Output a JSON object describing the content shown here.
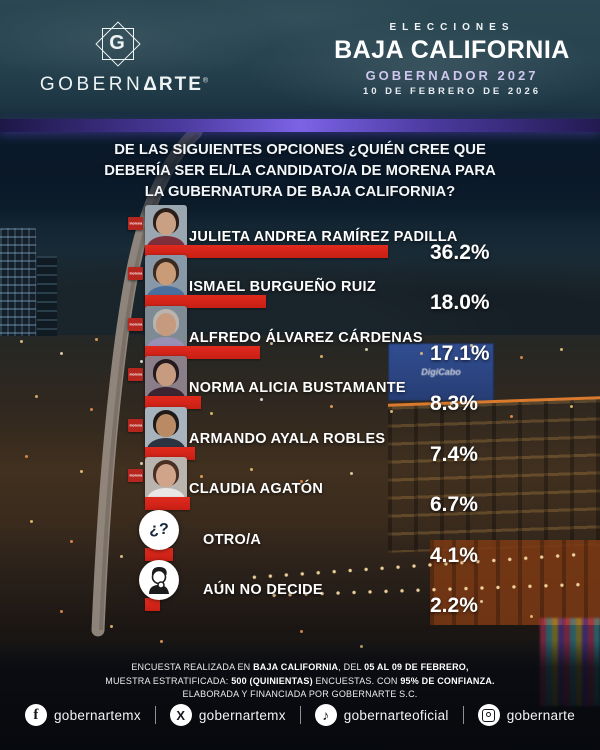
{
  "header": {
    "logo": {
      "monogram": "G",
      "name_regular": "GOBERN",
      "name_bold": "ΔRTE",
      "registered": "®"
    },
    "right": {
      "kicker": "ELECCIONES",
      "title": "BAJA CALIFORNIA",
      "subtitle": "GOBERNADOR 2027",
      "date": "10 DE FEBRERO DE 2026"
    }
  },
  "question": {
    "lines": [
      [
        {
          "text": "DE LAS SIGUIENTES OPCIONES ¿QUIÉN CREE QUE",
          "bold": false
        }
      ],
      [
        {
          "text": "DEBERÍA SER EL/LA CANDIDATO/A DE ",
          "bold": false
        },
        {
          "text": "MORENA PARA",
          "bold": true
        }
      ],
      [
        {
          "text": "LA GUBERNATURA DE BAJA CALIFORNIA?",
          "bold": true
        }
      ]
    ]
  },
  "chart_data": {
    "type": "bar",
    "orientation": "horizontal",
    "title": "De las siguientes opciones ¿quién cree que debería ser el/la candidato/a de MORENA para la gubernatura de Baja California?",
    "categories": [
      "JULIETA ANDREA RAMÍREZ PADILLA",
      "ISMAEL BURGUEÑO RUIZ",
      "ALFREDO ÁLVAREZ CÁRDENAS",
      "NORMA ALICIA BUSTAMANTE",
      "ARMANDO AYALA ROBLES",
      "CLAUDIA AGATÓN",
      "OTRO/A",
      "AÚN NO DECIDE"
    ],
    "values": [
      36.2,
      18.0,
      17.1,
      8.3,
      7.4,
      6.7,
      4.1,
      2.2
    ],
    "labels": [
      "36.2%",
      "18.0%",
      "17.1%",
      "8.3%",
      "7.4%",
      "6.7%",
      "4.1%",
      "2.2%"
    ],
    "bar_color": "#d2231c",
    "value_label_color": "#ffffff",
    "xlim": [
      0,
      40
    ],
    "grid": false,
    "legend": false
  },
  "results": {
    "badge_text": "morena",
    "other_glyph": "¿?"
  },
  "avatars": [
    {
      "bg": "#9aa7b0",
      "hair": "#2a1d1a",
      "skin": "#caa085",
      "shirt": "#7e2f3a"
    },
    {
      "bg": "#8898a6",
      "hair": "#3a2a20",
      "skin": "#c99b76",
      "shirt": "#4a6f9c"
    },
    {
      "bg": "#7f8b94",
      "hair": "#b9b5ae",
      "skin": "#c59a7e",
      "shirt": "#9a8fb5"
    },
    {
      "bg": "#8a7f88",
      "hair": "#241a1e",
      "skin": "#c79b80",
      "shirt": "#3a2530"
    },
    {
      "bg": "#a7b3bd",
      "hair": "#1f1a17",
      "skin": "#b98a64",
      "shirt": "#2c3442"
    },
    {
      "bg": "#b9b4ae",
      "hair": "#4a2f23",
      "skin": "#cfa488",
      "shirt": "#e9e7e6"
    }
  ],
  "background": {
    "billboard_text": "DigiCabo"
  },
  "footer": {
    "lines": [
      [
        {
          "text": "ENCUESTA REALIZADA EN ",
          "bold": false
        },
        {
          "text": "BAJA CALIFORNIA",
          "bold": true
        },
        {
          "text": ", DEL ",
          "bold": false
        },
        {
          "text": "05 AL 09 DE FEBRERO,",
          "bold": true
        }
      ],
      [
        {
          "text": "MUESTRA ESTRATIFICADA: ",
          "bold": false
        },
        {
          "text": "500 (QUINIENTAS)",
          "bold": true
        },
        {
          "text": " ENCUESTAS. CON ",
          "bold": false
        },
        {
          "text": "95% DE CONFIANZA.",
          "bold": true
        }
      ],
      [
        {
          "text": "ELABORADA Y FINANCIADA POR GOBERNARTE S.C.",
          "bold": false
        }
      ]
    ],
    "socials": [
      {
        "icon": "facebook-icon",
        "glyph": "f",
        "handle": "gobernartemx"
      },
      {
        "icon": "x-icon",
        "glyph": "X",
        "handle": "gobernartemx"
      },
      {
        "icon": "tiktok-icon",
        "glyph": "♪",
        "handle": "gobernarteoficial"
      },
      {
        "icon": "instagram-icon",
        "glyph": "",
        "handle": "gobernarte"
      }
    ]
  }
}
